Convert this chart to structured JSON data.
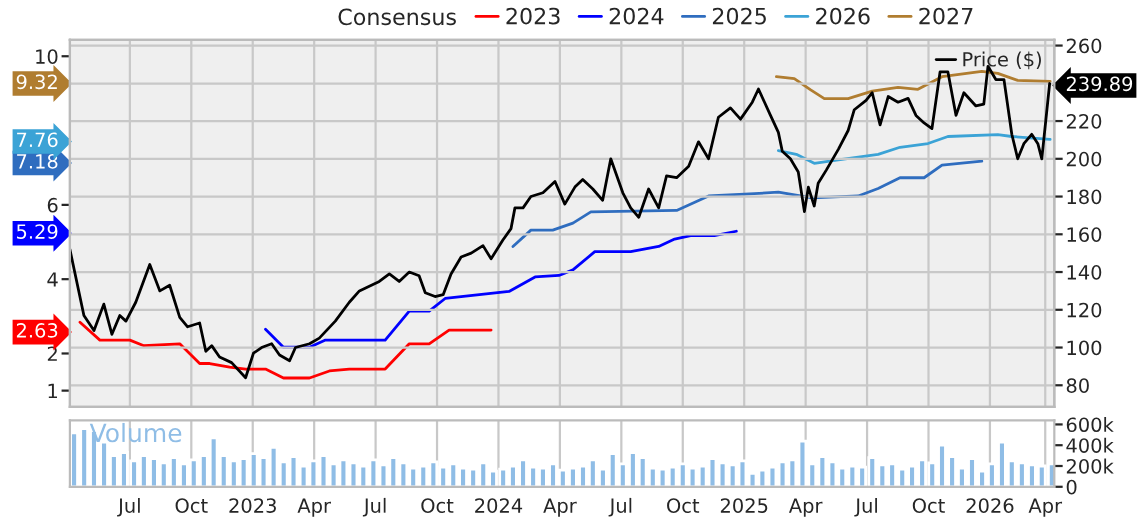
{
  "chart_data": [
    {
      "type": "line",
      "legend_title": "Consensus",
      "legend": "top",
      "tick_labels": "y",
      "xlim": [
        2022.256,
        2026.262
      ],
      "xticks": [
        {
          "value": 2022.5,
          "label": null
        },
        {
          "value": 2022.75,
          "label": null
        },
        {
          "value": 2023.0,
          "label": null
        },
        {
          "value": 2023.25,
          "label": null
        },
        {
          "value": 2023.5,
          "label": null
        },
        {
          "value": 2023.75,
          "label": null
        },
        {
          "value": 2024.0,
          "label": null
        },
        {
          "value": 2024.25,
          "label": null
        },
        {
          "value": 2024.5,
          "label": null
        },
        {
          "value": 2024.75,
          "label": null
        },
        {
          "value": 2025.0,
          "label": null
        },
        {
          "value": 2025.25,
          "label": null
        },
        {
          "value": 2025.5,
          "label": null
        },
        {
          "value": 2025.75,
          "label": null
        },
        {
          "value": 2026.0,
          "label": null
        },
        {
          "value": 2026.225,
          "label": null
        }
      ],
      "ylim": [
        0.56,
        10.44
      ],
      "yticks": [
        1,
        2,
        2.63,
        4,
        5.29,
        6,
        7.18,
        7.76,
        9.32,
        10
      ],
      "y2lim": [
        68.5,
        263
      ],
      "y2ticks": [
        80,
        100,
        120,
        140,
        160,
        180,
        200,
        220,
        239.89,
        260
      ],
      "grid": true,
      "series": [
        {
          "name": "2023",
          "color": "#ff0000",
          "x": [
            2022.297,
            2022.378,
            2022.5,
            2022.557,
            2022.703,
            2022.784,
            2022.825,
            2022.906,
            2022.971,
            2023.052,
            2023.125,
            2023.231,
            2023.312,
            2023.393,
            2023.539,
            2023.637,
            2023.718,
            2023.799,
            2023.97
          ],
          "values": [
            2.84,
            2.36,
            2.36,
            2.21,
            2.26,
            1.73,
            1.73,
            1.63,
            1.58,
            1.58,
            1.34,
            1.34,
            1.53,
            1.58,
            1.58,
            2.26,
            2.26,
            2.63,
            2.63
          ]
        },
        {
          "name": "2024",
          "color": "#0000ff",
          "x": [
            2023.052,
            2023.125,
            2023.231,
            2023.296,
            2023.539,
            2023.637,
            2023.718,
            2023.783,
            2024.043,
            2024.149,
            2024.246,
            2024.303,
            2024.392,
            2024.538,
            2024.652,
            2024.717,
            2024.782,
            2024.879,
            2024.968
          ],
          "values": [
            2.65,
            2.17,
            2.17,
            2.36,
            2.36,
            3.14,
            3.14,
            3.48,
            3.67,
            4.06,
            4.1,
            4.25,
            4.74,
            4.74,
            4.88,
            5.08,
            5.17,
            5.17,
            5.29
          ]
        },
        {
          "name": "2025",
          "color": "#2f6dbf",
          "x": [
            2024.059,
            2024.132,
            2024.221,
            2024.303,
            2024.376,
            2024.725,
            2024.855,
            2025.001,
            2025.139,
            2025.277,
            2025.464,
            2025.545,
            2025.634,
            2025.732,
            2025.805,
            2025.967
          ],
          "values": [
            4.88,
            5.32,
            5.32,
            5.51,
            5.81,
            5.85,
            6.24,
            6.29,
            6.34,
            6.19,
            6.24,
            6.44,
            6.73,
            6.73,
            7.07,
            7.18
          ]
        },
        {
          "name": "2026",
          "color": "#3ba3d6",
          "x": [
            2025.139,
            2025.212,
            2025.285,
            2025.383,
            2025.545,
            2025.634,
            2025.748,
            2025.829,
            2026.032,
            2026.089,
            2026.245
          ],
          "values": [
            7.46,
            7.36,
            7.12,
            7.21,
            7.36,
            7.55,
            7.65,
            7.84,
            7.89,
            7.84,
            7.76
          ]
        },
        {
          "name": "2027",
          "color": "#b07d30",
          "x": [
            2025.131,
            2025.204,
            2025.269,
            2025.326,
            2025.423,
            2025.521,
            2025.626,
            2025.707,
            2025.805,
            2025.967,
            2026.032,
            2026.113,
            2026.245
          ],
          "values": [
            9.45,
            9.4,
            9.1,
            8.86,
            8.86,
            9.06,
            9.16,
            9.11,
            9.45,
            9.59,
            9.54,
            9.35,
            9.32
          ]
        },
        {
          "name": "Price ($)",
          "color": "#000000",
          "axis": "y2",
          "x": [
            2022.256,
            2022.313,
            2022.354,
            2022.394,
            2022.427,
            2022.459,
            2022.484,
            2022.524,
            2022.581,
            2022.622,
            2022.662,
            2022.703,
            2022.735,
            2022.784,
            2022.809,
            2022.833,
            2022.865,
            2022.914,
            2022.971,
            2023.003,
            2023.036,
            2023.077,
            2023.109,
            2023.15,
            2023.174,
            2023.231,
            2023.271,
            2023.336,
            2023.393,
            2023.434,
            2023.483,
            2023.515,
            2023.556,
            2023.596,
            2023.637,
            2023.677,
            2023.702,
            2023.742,
            2023.775,
            2023.807,
            2023.848,
            2023.889,
            2023.937,
            2023.97,
            2024.018,
            2024.051,
            2024.067,
            2024.1,
            2024.132,
            2024.181,
            2024.23,
            2024.27,
            2024.311,
            2024.343,
            2024.384,
            2024.424,
            2024.457,
            2024.506,
            2024.538,
            2024.571,
            2024.611,
            2024.652,
            2024.684,
            2024.725,
            2024.774,
            2024.814,
            2024.855,
            2024.895,
            2024.944,
            2024.985,
            2025.033,
            2025.058,
            2025.107,
            2025.139,
            2025.155,
            2025.188,
            2025.22,
            2025.245,
            2025.261,
            2025.285,
            2025.301,
            2025.334,
            2025.383,
            2025.423,
            2025.448,
            2025.496,
            2025.521,
            2025.553,
            2025.586,
            2025.626,
            2025.667,
            2025.699,
            2025.732,
            2025.764,
            2025.797,
            2025.829,
            2025.862,
            2025.894,
            2025.943,
            2025.975,
            2025.992,
            2026.024,
            2026.057,
            2026.089,
            2026.113,
            2026.138,
            2026.17,
            2026.195,
            2026.211,
            2026.243
          ],
          "values": [
            152,
            117,
            109,
            123,
            107,
            117,
            114,
            124,
            144,
            130,
            133,
            116,
            111,
            113,
            98,
            101,
            95,
            92,
            84,
            97,
            100,
            102,
            96,
            93,
            100,
            102,
            105,
            114,
            124,
            130,
            133,
            135,
            139,
            135,
            140,
            138,
            129,
            127,
            128,
            139,
            148,
            150,
            154,
            147,
            157,
            163,
            174,
            174,
            180,
            182,
            188,
            176,
            185,
            189,
            184,
            178,
            200,
            182,
            174,
            169,
            184,
            174,
            191,
            190,
            196,
            209,
            200,
            222,
            227,
            221,
            230,
            237,
            223,
            214,
            204,
            200,
            193,
            172,
            185,
            175,
            187,
            194,
            205,
            215,
            226,
            231,
            235,
            218,
            233,
            230,
            232,
            223,
            219,
            216,
            246,
            246,
            223,
            235,
            228,
            229,
            249,
            242,
            242,
            213,
            200,
            208,
            213,
            208,
            200,
            239.89
          ]
        }
      ]
    },
    {
      "type": "bar",
      "grid": "x",
      "xlim": [
        2022.256,
        2026.262
      ],
      "xticks": [
        {
          "value": 2022.5,
          "label": "Jul"
        },
        {
          "value": 2022.75,
          "label": "Oct"
        },
        {
          "value": 2023.0,
          "label": "2023"
        },
        {
          "value": 2023.25,
          "label": "Apr"
        },
        {
          "value": 2023.5,
          "label": "Jul"
        },
        {
          "value": 2023.75,
          "label": "Oct"
        },
        {
          "value": 2024.0,
          "label": "2024"
        },
        {
          "value": 2024.25,
          "label": "Apr"
        },
        {
          "value": 2024.5,
          "label": "Jul"
        },
        {
          "value": 2024.75,
          "label": "Oct"
        },
        {
          "value": 2025.0,
          "label": "2025"
        },
        {
          "value": 2025.25,
          "label": "Apr"
        },
        {
          "value": 2025.5,
          "label": "Jul"
        },
        {
          "value": 2025.75,
          "label": "Oct"
        },
        {
          "value": 2026.0,
          "label": "2026"
        },
        {
          "value": 2026.225,
          "label": "Apr"
        }
      ],
      "ylim": [
        0,
        640000
      ],
      "yticks": [
        {
          "value": 0,
          "label": "0"
        },
        {
          "value": 200000,
          "label": "200k"
        },
        {
          "value": 400000,
          "label": "400k"
        },
        {
          "value": 600000,
          "label": "600k"
        }
      ],
      "series": [
        {
          "name": "Volume",
          "color": "#8fbde6",
          "x": [
            2022.273,
            2022.314,
            2022.354,
            2022.395,
            2022.435,
            2022.476,
            2022.517,
            2022.557,
            2022.598,
            2022.638,
            2022.679,
            2022.72,
            2022.76,
            2022.801,
            2022.841,
            2022.882,
            2022.923,
            2022.963,
            2023.004,
            2023.044,
            2023.085,
            2023.126,
            2023.166,
            2023.207,
            2023.247,
            2023.288,
            2023.329,
            2023.369,
            2023.41,
            2023.45,
            2023.491,
            2023.532,
            2023.572,
            2023.613,
            2023.653,
            2023.694,
            2023.735,
            2023.775,
            2023.816,
            2023.856,
            2023.897,
            2023.938,
            2023.978,
            2024.019,
            2024.059,
            2024.1,
            2024.141,
            2024.181,
            2024.222,
            2024.262,
            2024.303,
            2024.344,
            2024.384,
            2024.425,
            2024.465,
            2024.506,
            2024.547,
            2024.587,
            2024.628,
            2024.668,
            2024.709,
            2024.75,
            2024.79,
            2024.831,
            2024.871,
            2024.912,
            2024.953,
            2024.993,
            2025.034,
            2025.074,
            2025.115,
            2025.156,
            2025.196,
            2025.237,
            2025.277,
            2025.318,
            2025.359,
            2025.399,
            2025.44,
            2025.48,
            2025.521,
            2025.562,
            2025.602,
            2025.643,
            2025.683,
            2025.724,
            2025.765,
            2025.805,
            2025.846,
            2025.886,
            2025.927,
            2025.968,
            2026.008,
            2026.049,
            2026.089,
            2026.13,
            2026.171,
            2026.211,
            2026.252
          ],
          "values": [
            520000,
            560000,
            540000,
            430000,
            300000,
            330000,
            250000,
            300000,
            270000,
            230000,
            280000,
            220000,
            260000,
            300000,
            470000,
            300000,
            250000,
            270000,
            320000,
            280000,
            380000,
            240000,
            290000,
            200000,
            250000,
            300000,
            220000,
            260000,
            230000,
            200000,
            260000,
            210000,
            280000,
            230000,
            180000,
            200000,
            240000,
            190000,
            220000,
            180000,
            170000,
            230000,
            150000,
            170000,
            200000,
            260000,
            190000,
            180000,
            220000,
            160000,
            180000,
            200000,
            260000,
            170000,
            320000,
            220000,
            330000,
            280000,
            180000,
            170000,
            190000,
            220000,
            180000,
            200000,
            270000,
            230000,
            210000,
            250000,
            130000,
            160000,
            190000,
            240000,
            260000,
            440000,
            220000,
            290000,
            240000,
            180000,
            200000,
            190000,
            280000,
            210000,
            220000,
            170000,
            200000,
            260000,
            230000,
            400000,
            290000,
            180000,
            270000,
            150000,
            220000,
            430000,
            250000,
            230000,
            210000,
            200000,
            220000
          ]
        }
      ]
    }
  ]
}
